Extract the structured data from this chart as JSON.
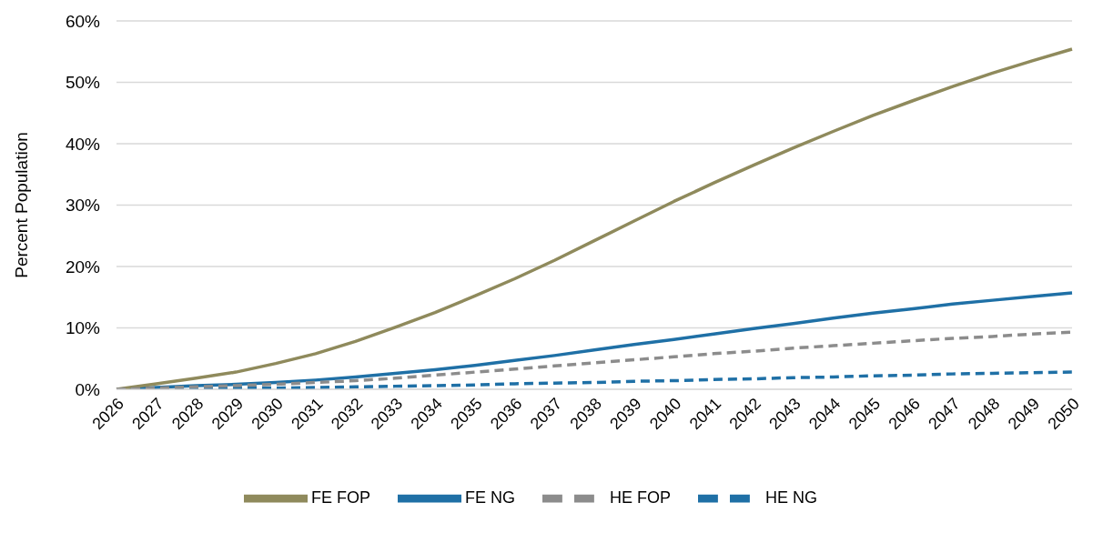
{
  "chart_data": {
    "type": "line",
    "ylabel": "Percent Population",
    "categories": [
      "2026",
      "2027",
      "2028",
      "2029",
      "2030",
      "2031",
      "2032",
      "2033",
      "2034",
      "2035",
      "2036",
      "2037",
      "2038",
      "2039",
      "2040",
      "2041",
      "2042",
      "2043",
      "2044",
      "2045",
      "2046",
      "2047",
      "2048",
      "2049",
      "2050"
    ],
    "series": [
      {
        "name": "FE NG",
        "color": "#1f70a6",
        "line_style": "solid",
        "values": [
          0,
          0.3,
          0.6,
          0.8,
          1.1,
          1.5,
          2.0,
          2.6,
          3.2,
          3.9,
          4.7,
          5.5,
          6.4,
          7.3,
          8.1,
          9.0,
          9.9,
          10.7,
          11.6,
          12.4,
          13.1,
          13.9,
          14.5,
          15.1,
          15.7
        ]
      },
      {
        "name": "HE NG",
        "color": "#1f70a6",
        "line_style": "dashed",
        "values": [
          0,
          0.1,
          0.1,
          0.2,
          0.2,
          0.3,
          0.4,
          0.5,
          0.6,
          0.7,
          0.9,
          1.0,
          1.1,
          1.3,
          1.4,
          1.6,
          1.7,
          1.9,
          2.0,
          2.2,
          2.3,
          2.5,
          2.6,
          2.7,
          2.8
        ]
      },
      {
        "name": "FE FOP",
        "color": "#8f8a5c",
        "line_style": "solid",
        "values": [
          0,
          0.9,
          1.8,
          2.8,
          4.2,
          5.8,
          7.8,
          10.1,
          12.5,
          15.2,
          18.0,
          21.0,
          24.2,
          27.4,
          30.6,
          33.6,
          36.5,
          39.3,
          42.0,
          44.6,
          47.0,
          49.3,
          51.5,
          53.5,
          55.4
        ]
      },
      {
        "name": "HE FOP",
        "color": "#8c8c8c",
        "line_style": "dashed",
        "values": [
          0,
          0.2,
          0.4,
          0.6,
          0.8,
          1.1,
          1.4,
          1.8,
          2.3,
          2.8,
          3.3,
          3.8,
          4.3,
          4.8,
          5.3,
          5.8,
          6.2,
          6.7,
          7.1,
          7.5,
          7.9,
          8.3,
          8.6,
          9.0,
          9.3
        ]
      }
    ],
    "ylim": [
      0,
      60
    ],
    "yticks": [
      {
        "value": 0,
        "label": "0%"
      },
      {
        "value": 10,
        "label": "10%"
      },
      {
        "value": 20,
        "label": "20%"
      },
      {
        "value": 30,
        "label": "30%"
      },
      {
        "value": 40,
        "label": "40%"
      },
      {
        "value": 50,
        "label": "50%"
      },
      {
        "value": 60,
        "label": "60%"
      }
    ],
    "grid": "y",
    "legend": "bottom",
    "marker": "none"
  }
}
